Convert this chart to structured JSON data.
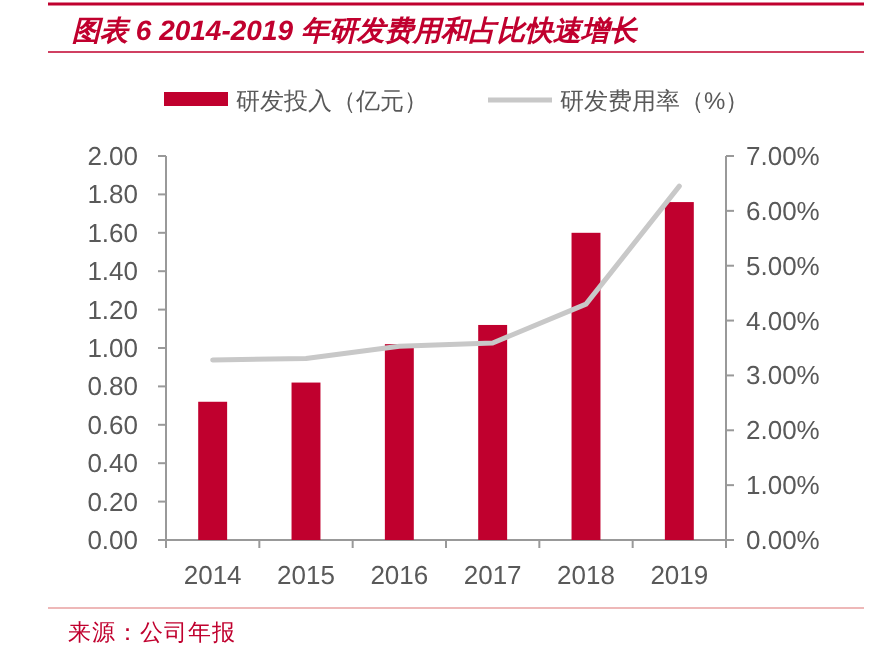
{
  "chart_data": {
    "type": "bar",
    "title": "图表 6 2014-2019 年研发费用和占比快速增长",
    "categories": [
      "2014",
      "2015",
      "2016",
      "2017",
      "2018",
      "2019"
    ],
    "series": [
      {
        "name": "研发投入（亿元）",
        "color": "#c0002e",
        "values": [
          0.72,
          0.82,
          1.02,
          1.12,
          1.6,
          1.76
        ]
      },
      {
        "name": "研发费用率（%）",
        "type": "line",
        "axis": "y2",
        "color": "#c8c8c8",
        "values": [
          3.28,
          3.31,
          3.53,
          3.59,
          4.3,
          6.45
        ]
      }
    ],
    "ylim": [
      0,
      2
    ],
    "yticks": [
      {
        "value": 0,
        "label": "0.00"
      },
      {
        "value": 0.2,
        "label": "0.20"
      },
      {
        "value": 0.4,
        "label": "0.40"
      },
      {
        "value": 0.6,
        "label": "0.60"
      },
      {
        "value": 0.8,
        "label": "0.80"
      },
      {
        "value": 1,
        "label": "1.00"
      },
      {
        "value": 1.2,
        "label": "1.20"
      },
      {
        "value": 1.4,
        "label": "1.40"
      },
      {
        "value": 1.6,
        "label": "1.60"
      },
      {
        "value": 1.8,
        "label": "1.80"
      },
      {
        "value": 2,
        "label": "2.00"
      }
    ],
    "y2lim": [
      0,
      7
    ],
    "y2ticks": [
      {
        "value": 0,
        "label": "0.00%"
      },
      {
        "value": 1,
        "label": "1.00%"
      },
      {
        "value": 2,
        "label": "2.00%"
      },
      {
        "value": 3,
        "label": "3.00%"
      },
      {
        "value": 4,
        "label": "4.00%"
      },
      {
        "value": 5,
        "label": "5.00%"
      },
      {
        "value": 6,
        "label": "6.00%"
      },
      {
        "value": 7,
        "label": "7.00%"
      }
    ],
    "legend": "top",
    "grid": false,
    "marker": "none",
    "line_style": "solid",
    "annotations": [
      "来源：公司年报"
    ]
  }
}
